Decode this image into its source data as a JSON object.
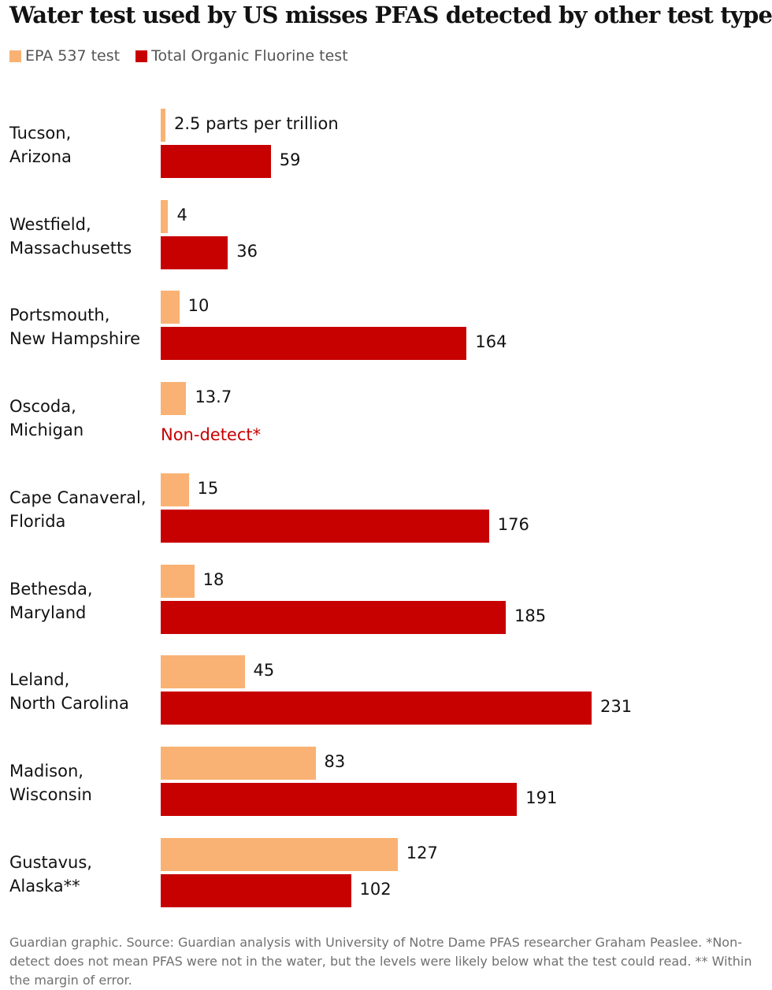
{
  "title": "Water test used by US misses PFAS detected by other test type",
  "legend": [
    {
      "label": "EPA 537 test",
      "color": "#f9b274"
    },
    {
      "label": "Total Organic Fluorine test",
      "color": "#c70000"
    }
  ],
  "colors": {
    "epa": "#f9b274",
    "tof": "#c70000",
    "non_detect_text": "#c70000"
  },
  "chart_data": {
    "type": "bar",
    "orientation": "horizontal",
    "title": "Water test used by US misses PFAS detected by other test type",
    "xlabel": "",
    "ylabel": "",
    "unit": "parts per trillion",
    "xlim": [
      0,
      231
    ],
    "grid": false,
    "legend_position": "top-left",
    "categories": [
      "Tucson,\nArizona",
      "Westfield,\nMassachusetts",
      "Portsmouth,\nNew Hampshire",
      "Oscoda,\nMichigan",
      "Cape Canaveral,\nFlorida",
      "Bethesda,\nMaryland",
      "Leland,\nNorth Carolina",
      "Madison,\nWisconsin",
      "Gustavus,\nAlaska**"
    ],
    "series": [
      {
        "name": "EPA 537 test",
        "values": [
          2.5,
          4,
          10,
          13.7,
          15,
          18,
          45,
          83,
          127
        ],
        "labels": [
          "2.5 parts per trillion",
          "4",
          "10",
          "13.7",
          "15",
          "18",
          "45",
          "83",
          "127"
        ]
      },
      {
        "name": "Total Organic Fluorine test",
        "values": [
          59,
          36,
          164,
          null,
          176,
          185,
          231,
          191,
          102
        ],
        "labels": [
          "59",
          "36",
          "164",
          "Non-detect*",
          "176",
          "185",
          "231",
          "191",
          "102"
        ]
      }
    ]
  },
  "footer": "Guardian graphic. Source: Guardian analysis with University of Notre Dame PFAS researcher Graham Peaslee. *Non-detect does not mean PFAS were not in the water, but the levels were likely below what the test could read. ** Within the margin of error."
}
